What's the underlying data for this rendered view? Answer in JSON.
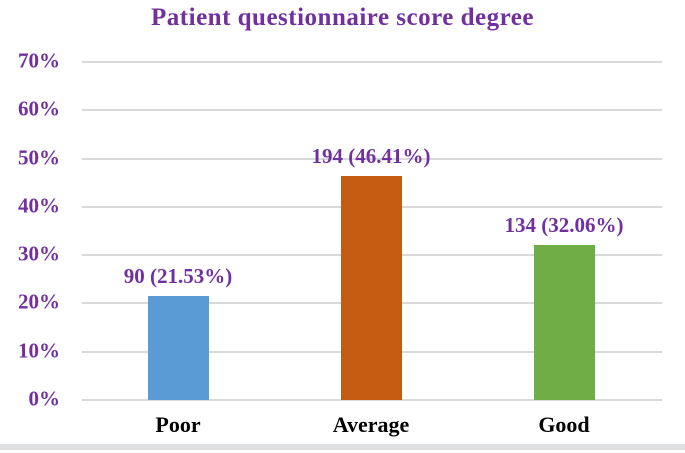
{
  "chart_data": {
    "type": "bar",
    "title": "Patient questionnaire score degree",
    "categories": [
      "Poor",
      "Average",
      "Good"
    ],
    "counts": [
      90,
      194,
      134
    ],
    "values": [
      21.53,
      46.41,
      32.06
    ],
    "bar_labels": [
      "90 (21.53%)",
      "194 (46.41%)",
      "134 (32.06%)"
    ],
    "bar_colors": [
      "#5B9BD5",
      "#C55A11",
      "#70AD47"
    ],
    "y_ticks": [
      "70%",
      "60%",
      "50%",
      "40%",
      "30%",
      "20%",
      "10%",
      "0%"
    ],
    "ylim": [
      0,
      70
    ],
    "xlabel": "",
    "ylabel": "",
    "grid": true,
    "legend": "none",
    "colors": {
      "title_text": "#7030A0",
      "axis_tick_text": "#7030A0",
      "bar_label_text": "#7030A0",
      "category_text": "#000000",
      "gridline": "#D9D9D9",
      "background": "#FFFFFF",
      "figure_bottom_border": "#DFE0E2"
    }
  }
}
